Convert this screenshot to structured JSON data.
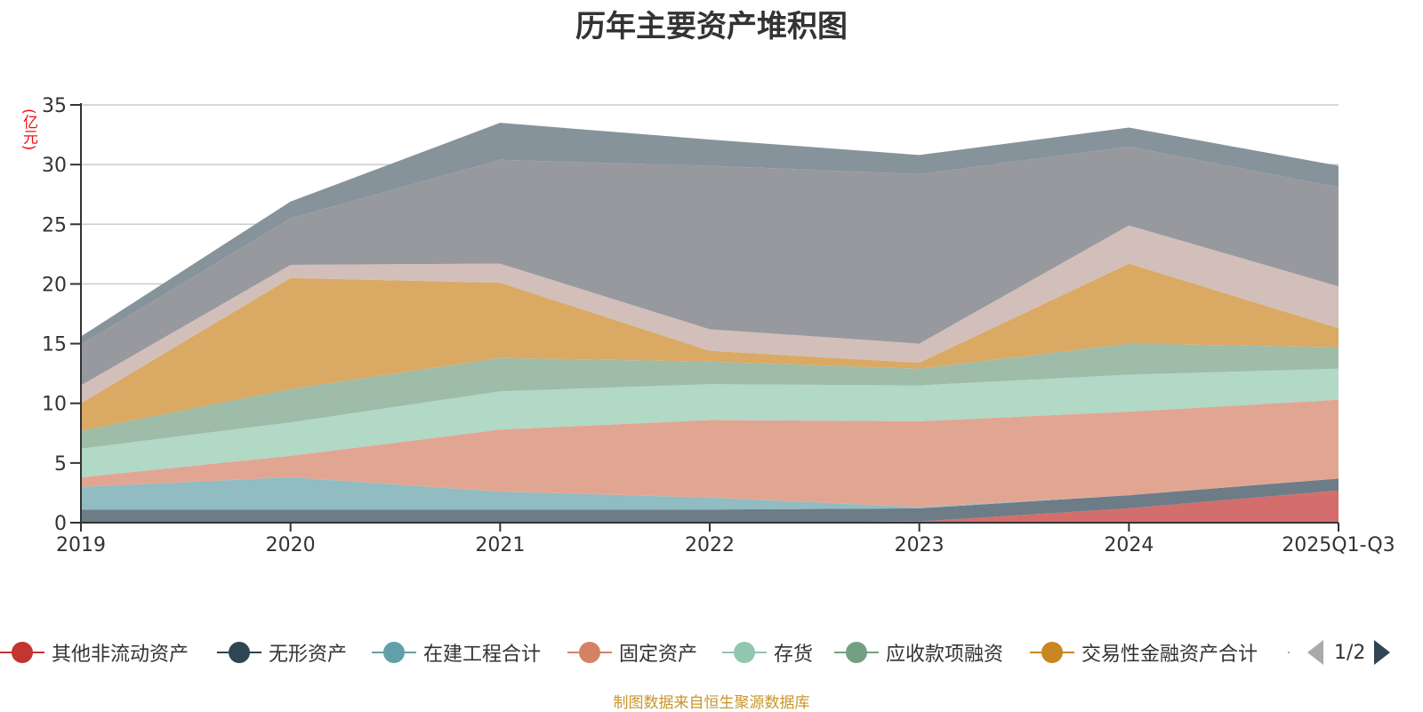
{
  "chart_data": {
    "type": "area",
    "stacked": true,
    "title": "历年主要资产堆积图",
    "xlabel": "",
    "ylabel": "(亿元)",
    "ylim": [
      0,
      35
    ],
    "yticks": [
      0,
      5,
      10,
      15,
      20,
      25,
      30,
      35
    ],
    "grid": true,
    "categories": [
      "2019",
      "2020",
      "2021",
      "2022",
      "2023",
      "2024",
      "2025Q1-Q3"
    ],
    "legend_position": "bottom",
    "series": [
      {
        "name": "其他非流动资产",
        "color": "#c23531",
        "fill": "#d46e6c",
        "legend_visible": true,
        "values": [
          0,
          0,
          0,
          0,
          0.1,
          1.2,
          2.7
        ]
      },
      {
        "name": "无形资产",
        "color": "#2f4554",
        "fill": "#6d7c87",
        "legend_visible": true,
        "values": [
          1.1,
          1.1,
          1.1,
          1.1,
          1.1,
          1.1,
          1.0
        ]
      },
      {
        "name": "在建工程合计",
        "color": "#61a0a8",
        "fill": "#90bcc2",
        "legend_visible": true,
        "values": [
          1.9,
          2.7,
          1.5,
          1.0,
          0.1,
          0,
          0
        ]
      },
      {
        "name": "固定资产",
        "color": "#d48265",
        "fill": "#e1a692",
        "legend_visible": true,
        "values": [
          0.8,
          1.8,
          5.2,
          6.5,
          7.2,
          7.0,
          6.6
        ]
      },
      {
        "name": "存货",
        "color": "#91c7ae",
        "fill": "#b2d8c6",
        "legend_visible": true,
        "values": [
          2.4,
          2.8,
          3.2,
          3.0,
          3.0,
          3.1,
          2.6
        ]
      },
      {
        "name": "应收款项融资",
        "color": "#749f83",
        "fill": "#9ebca8",
        "legend_visible": true,
        "values": [
          1.5,
          2.8,
          2.8,
          1.9,
          1.4,
          2.6,
          1.8
        ]
      },
      {
        "name": "交易性金融资产合计",
        "color": "#ca8622",
        "fill": "#daa964",
        "legend_visible": true,
        "values": [
          2.3,
          9.3,
          6.3,
          0.9,
          0.5,
          6.7,
          1.6
        ]
      },
      {
        "name": "",
        "color": "#bda29a",
        "fill": "#d2bfba",
        "legend_visible": false,
        "values": [
          1.5,
          1.1,
          1.6,
          1.8,
          1.6,
          3.2,
          3.5
        ]
      },
      {
        "name": "",
        "color": "#6e7074",
        "fill": "#98999e",
        "legend_visible": false,
        "values": [
          3.4,
          3.9,
          8.7,
          13.7,
          14.2,
          6.6,
          8.3
        ]
      },
      {
        "name": "",
        "color": "#546570",
        "fill": "#87939b",
        "legend_visible": false,
        "values": [
          0.7,
          1.4,
          3.1,
          2.2,
          1.6,
          1.6,
          1.8
        ]
      }
    ]
  },
  "legend": {
    "page_indicator": "1/2",
    "prev_icon": "triangle-left-icon",
    "next_icon": "triangle-right-icon"
  },
  "footer": "制图数据来自恒生聚源数据库"
}
